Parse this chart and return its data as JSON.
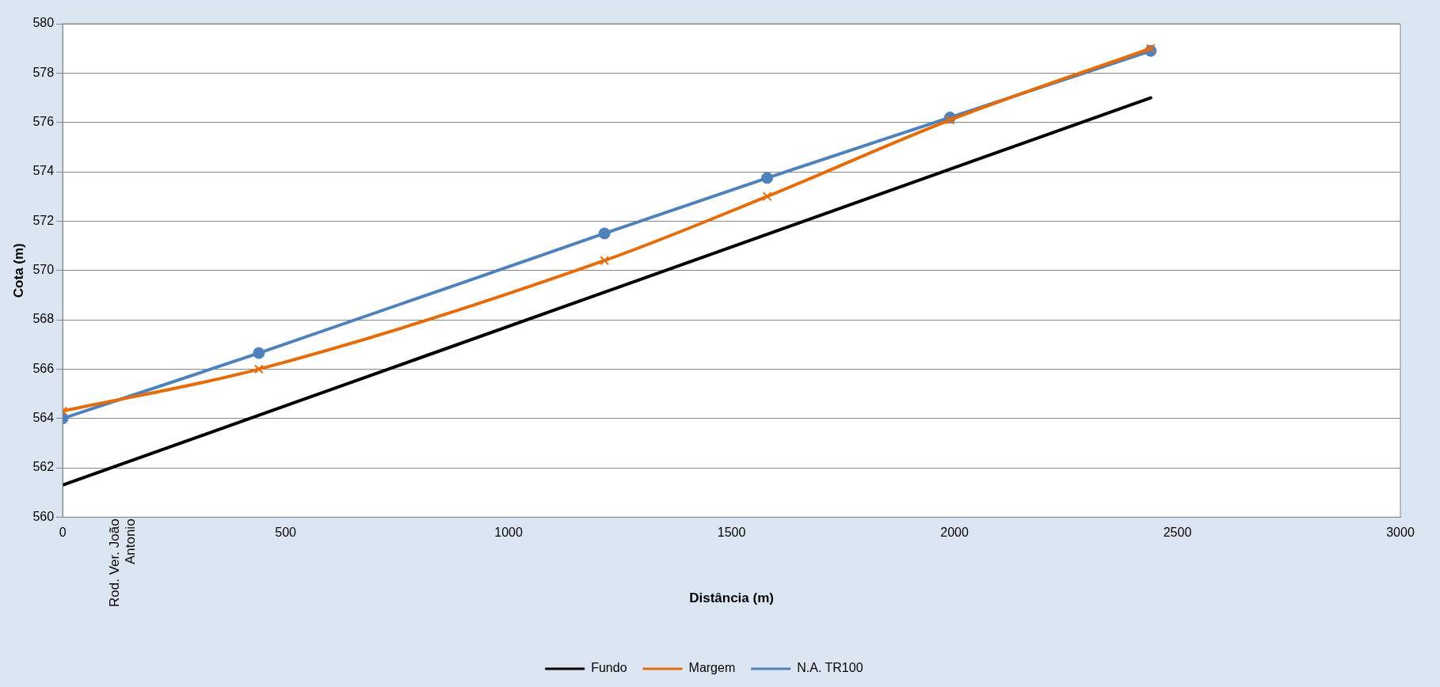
{
  "chart_data": {
    "type": "line",
    "xlabel": "Distância (m)",
    "ylabel": "Cota (m)",
    "xlim": [
      0,
      3000
    ],
    "xticks": [
      0,
      500,
      1000,
      1500,
      2000,
      2500,
      3000
    ],
    "ylim": [
      560,
      580
    ],
    "yticks": [
      560,
      562,
      564,
      566,
      568,
      570,
      572,
      574,
      576,
      578,
      580
    ],
    "grid": "y",
    "legend": "bottom",
    "series": [
      {
        "name": "Fundo",
        "color": "#000000",
        "x": [
          0,
          2440
        ],
        "values": [
          561.3,
          577
        ],
        "marker": "none"
      },
      {
        "name": "Margem",
        "color": "#e46c0a",
        "x": [
          0,
          440,
          1215,
          1580,
          1990,
          2440
        ],
        "values": [
          564.3,
          566,
          570.4,
          573,
          576.1,
          579
        ],
        "marker": "cross"
      },
      {
        "name": "N.A. TR100",
        "color": "#4f81bd",
        "x": [
          0,
          440,
          1215,
          1580,
          1990,
          2440
        ],
        "values": [
          564,
          566.65,
          571.5,
          573.75,
          576.2,
          578.9
        ],
        "marker": "circle"
      }
    ],
    "annotations": [
      "Rod. Ver. João Antonio"
    ]
  }
}
